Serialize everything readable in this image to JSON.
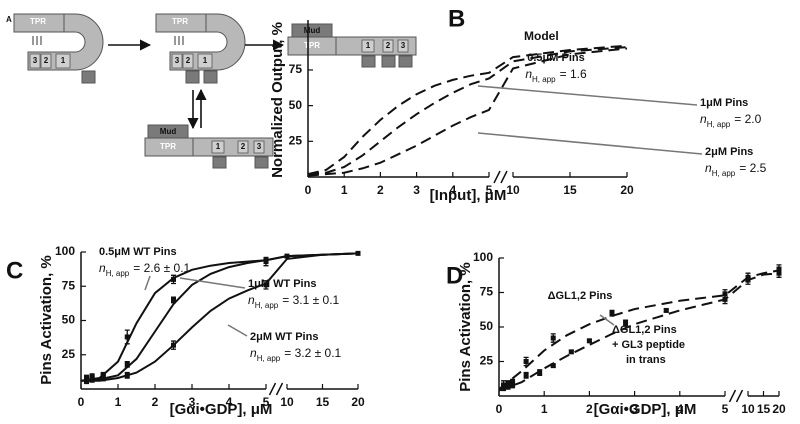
{
  "diagram": {
    "panel_label": "A",
    "states": [
      {
        "tpr": "TPR",
        "motifs": [
          "3",
          "2",
          "1"
        ]
      },
      {
        "tpr": "TPR",
        "motifs": [
          "3",
          "2",
          "1"
        ]
      },
      {
        "mud": "Mud",
        "tpr": "TPR",
        "motifs": [
          "1",
          "2",
          "3"
        ]
      },
      {
        "mud": "Mud",
        "tpr": "TPR",
        "motifs": [
          "1",
          "2",
          "3"
        ]
      }
    ]
  },
  "chart_data": [
    {
      "type": "line",
      "panel_label": "B",
      "annotation": "Model",
      "y_label": "Normalized Output, %",
      "x_label": "[Input], μM",
      "ylim": [
        0,
        110
      ],
      "yticks": [
        25,
        50,
        75
      ],
      "line_style": "dashed",
      "color": "#111",
      "x_segments": [
        {
          "xlim": [
            0,
            5
          ],
          "xticks": [
            0,
            1,
            2,
            3,
            4,
            5
          ]
        },
        {
          "xlim": [
            10,
            20
          ],
          "xticks": [
            10,
            15,
            20
          ]
        }
      ],
      "x": [
        0,
        0.5,
        1,
        1.5,
        2,
        2.5,
        3,
        3.5,
        4,
        4.5,
        5,
        10,
        15,
        20
      ],
      "series": [
        {
          "name": "0.5μM Pins",
          "hill": {
            "symbol": "n",
            "subscript": "H, app",
            "value_text": "= 1.6"
          },
          "values": [
            2,
            5,
            14,
            28,
            40,
            50,
            58,
            64,
            68,
            71,
            73,
            84,
            89,
            92
          ]
        },
        {
          "name": "1μM Pins",
          "hill": {
            "symbol": "n",
            "subscript": "H, app",
            "value_text": "= 2.0"
          },
          "values": [
            2,
            3,
            7,
            15,
            25,
            35,
            44,
            52,
            59,
            65,
            69,
            81,
            88,
            91
          ]
        },
        {
          "name": "2μM Pins",
          "hill": {
            "symbol": "n",
            "subscript": "H, app",
            "value_text": "= 2.5"
          },
          "values": [
            1,
            2,
            3,
            6,
            10,
            16,
            22,
            29,
            36,
            42,
            47,
            76,
            86,
            90
          ]
        }
      ]
    },
    {
      "type": "scatter",
      "panel_label": "C",
      "y_label": "Pins Activation, %",
      "x_label": "[Gαi•GDP], μM",
      "ylim": [
        0,
        100
      ],
      "yticks": [
        25,
        50,
        75,
        100
      ],
      "line_style": "solid",
      "color": "#111",
      "x_segments": [
        {
          "xlim": [
            0,
            5
          ],
          "xticks": [
            0,
            1,
            2,
            3,
            4,
            5
          ]
        },
        {
          "xlim": [
            10,
            20
          ],
          "xticks": [
            10,
            15,
            20
          ]
        }
      ],
      "fit_x": [
        0,
        0.5,
        1,
        1.5,
        2,
        2.5,
        3,
        3.5,
        4,
        4.5,
        5,
        10,
        15,
        20
      ],
      "series": [
        {
          "name": "0.5μM WT Pins",
          "hill": {
            "symbol": "n",
            "subscript": "H, app",
            "value_text": "= 2.6 ± 0.1"
          },
          "x": [
            0.15,
            0.3,
            0.6,
            1.25,
            2.5,
            5,
            10,
            20
          ],
          "values": [
            8,
            9,
            10,
            38,
            80,
            93,
            97,
            99
          ],
          "errors": [
            2,
            2,
            2,
            5,
            3,
            3,
            1,
            1
          ],
          "fit": [
            6,
            8,
            20,
            48,
            70,
            81,
            87,
            90,
            92,
            93,
            94,
            97,
            98,
            99
          ]
        },
        {
          "name": "1μM WT Pins",
          "hill": {
            "symbol": "n",
            "subscript": "H, app",
            "value_text": "= 3.1 ± 0.1"
          },
          "x": [
            0.15,
            0.3,
            0.6,
            1.25,
            2.5,
            5
          ],
          "values": [
            7,
            8,
            9,
            18,
            65,
            94
          ],
          "errors": [
            2,
            2,
            2,
            2,
            2,
            2
          ],
          "fit": [
            6,
            7,
            10,
            22,
            42,
            62,
            76,
            84,
            89,
            92,
            94,
            97,
            98,
            99
          ]
        },
        {
          "name": "2μM WT Pins",
          "hill": {
            "symbol": "n",
            "subscript": "H, app",
            "value_text": "= 3.2 ± 0.1"
          },
          "x": [
            0.15,
            0.3,
            0.6,
            1.25,
            2.5,
            5
          ],
          "values": [
            6,
            7,
            8,
            10,
            32,
            76
          ],
          "errors": [
            2,
            2,
            2,
            2,
            3,
            3
          ],
          "fit": [
            6,
            6,
            8,
            12,
            20,
            32,
            45,
            57,
            66,
            72,
            77,
            95,
            98,
            99
          ]
        }
      ]
    },
    {
      "type": "scatter",
      "panel_label": "D",
      "y_label": "Pins Activation, %",
      "x_label": "[Gαi•GDP], μM",
      "ylim": [
        0,
        100
      ],
      "yticks": [
        25,
        50,
        75,
        100
      ],
      "line_style": "dashed",
      "color": "#111",
      "x_segments": [
        {
          "xlim": [
            0,
            5
          ],
          "xticks": [
            0,
            1,
            2,
            3,
            4,
            5
          ]
        },
        {
          "xlim": [
            10,
            20
          ],
          "xticks": [
            10,
            15,
            20
          ]
        }
      ],
      "fit_x": [
        0,
        0.5,
        1,
        1.5,
        2,
        2.5,
        3,
        3.5,
        4,
        4.5,
        5,
        10,
        15,
        20
      ],
      "series": [
        {
          "name": "ΔGL1,2 Pins",
          "x": [
            0.1,
            0.2,
            0.3,
            0.6,
            1.2,
            2.5,
            5,
            10,
            20
          ],
          "values": [
            8,
            9,
            10,
            25,
            42,
            60,
            74,
            86,
            92
          ],
          "errors": [
            3,
            2,
            2,
            3,
            3,
            2,
            3,
            3,
            3
          ],
          "fit": [
            5,
            18,
            33,
            44,
            52,
            58,
            63,
            66,
            69,
            71,
            73,
            86,
            89,
            91
          ]
        },
        {
          "name": "ΔGL1,2 Pins",
          "notes": [
            "+ GL3 peptide",
            "in trans"
          ],
          "x": [
            0.1,
            0.2,
            0.3,
            0.6,
            0.9,
            1.2,
            1.6,
            2,
            2.8,
            3.7,
            5,
            10,
            20
          ],
          "values": [
            6,
            7,
            8,
            15,
            17,
            22,
            32,
            40,
            53,
            62,
            70,
            84,
            89
          ],
          "errors": [
            2,
            2,
            2,
            2,
            2,
            1,
            1,
            1,
            2,
            1,
            3,
            3,
            3
          ],
          "fit": [
            4,
            10,
            20,
            29,
            37,
            45,
            52,
            57,
            62,
            66,
            70,
            84,
            88,
            89
          ]
        }
      ]
    }
  ]
}
